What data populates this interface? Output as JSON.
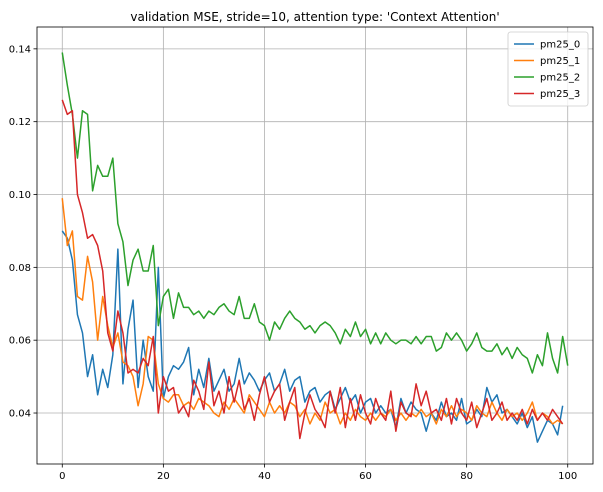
{
  "chart_data": {
    "type": "line",
    "title": "validation MSE, stride=10, attention type: 'Context Attention'",
    "xlabel": "",
    "ylabel": "",
    "xlim": [
      -5,
      105
    ],
    "ylim": [
      0.026,
      0.146
    ],
    "xticks": [
      0,
      20,
      40,
      60,
      80,
      100
    ],
    "yticks": [
      0.04,
      0.06,
      0.08,
      0.1,
      0.12,
      0.14
    ],
    "ytick_labels": [
      "0.04",
      "0.06",
      "0.08",
      "0.10",
      "0.12",
      "0.14"
    ],
    "grid": true,
    "legend_position": "top-right",
    "series": [
      {
        "name": "pm25_0",
        "color": "#1f77b4",
        "values": [
          0.09,
          0.088,
          0.082,
          0.067,
          0.062,
          0.05,
          0.056,
          0.045,
          0.052,
          0.047,
          0.056,
          0.085,
          0.048,
          0.063,
          0.071,
          0.047,
          0.06,
          0.05,
          0.046,
          0.08,
          0.044,
          0.05,
          0.053,
          0.052,
          0.054,
          0.058,
          0.045,
          0.052,
          0.047,
          0.055,
          0.046,
          0.049,
          0.052,
          0.046,
          0.048,
          0.055,
          0.048,
          0.051,
          0.049,
          0.046,
          0.049,
          0.051,
          0.046,
          0.048,
          0.052,
          0.046,
          0.049,
          0.05,
          0.043,
          0.046,
          0.047,
          0.043,
          0.045,
          0.046,
          0.041,
          0.044,
          0.047,
          0.043,
          0.045,
          0.04,
          0.043,
          0.044,
          0.04,
          0.042,
          0.04,
          0.041,
          0.036,
          0.044,
          0.04,
          0.043,
          0.041,
          0.04,
          0.035,
          0.04,
          0.038,
          0.043,
          0.039,
          0.04,
          0.038,
          0.044,
          0.037,
          0.038,
          0.041,
          0.039,
          0.047,
          0.043,
          0.045,
          0.04,
          0.041,
          0.039,
          0.037,
          0.04,
          0.036,
          0.039,
          0.032,
          0.035,
          0.038,
          0.037,
          0.034,
          0.042
        ]
      },
      {
        "name": "pm25_1",
        "color": "#ff7f0e",
        "values": [
          0.099,
          0.086,
          0.09,
          0.072,
          0.071,
          0.083,
          0.076,
          0.06,
          0.072,
          0.064,
          0.058,
          0.062,
          0.054,
          0.053,
          0.05,
          0.042,
          0.048,
          0.061,
          0.06,
          0.048,
          0.044,
          0.043,
          0.045,
          0.045,
          0.042,
          0.043,
          0.041,
          0.044,
          0.043,
          0.042,
          0.04,
          0.039,
          0.043,
          0.041,
          0.044,
          0.042,
          0.04,
          0.045,
          0.043,
          0.041,
          0.039,
          0.043,
          0.04,
          0.042,
          0.04,
          0.043,
          0.042,
          0.039,
          0.041,
          0.037,
          0.04,
          0.038,
          0.043,
          0.04,
          0.041,
          0.037,
          0.04,
          0.038,
          0.041,
          0.039,
          0.038,
          0.04,
          0.038,
          0.04,
          0.039,
          0.041,
          0.038,
          0.04,
          0.038,
          0.04,
          0.039,
          0.041,
          0.039,
          0.04,
          0.037,
          0.041,
          0.039,
          0.042,
          0.039,
          0.041,
          0.04,
          0.038,
          0.042,
          0.04,
          0.039,
          0.043,
          0.04,
          0.038,
          0.041,
          0.039,
          0.04,
          0.038,
          0.04,
          0.043,
          0.038,
          0.04,
          0.039,
          0.037,
          0.038,
          0.037
        ]
      },
      {
        "name": "pm25_2",
        "color": "#2ca02c",
        "values": [
          0.139,
          0.13,
          0.122,
          0.11,
          0.123,
          0.122,
          0.101,
          0.108,
          0.105,
          0.105,
          0.11,
          0.092,
          0.087,
          0.075,
          0.082,
          0.085,
          0.079,
          0.079,
          0.086,
          0.064,
          0.072,
          0.074,
          0.066,
          0.073,
          0.069,
          0.069,
          0.067,
          0.068,
          0.066,
          0.068,
          0.067,
          0.069,
          0.07,
          0.068,
          0.067,
          0.072,
          0.066,
          0.066,
          0.07,
          0.065,
          0.064,
          0.06,
          0.065,
          0.063,
          0.066,
          0.068,
          0.066,
          0.065,
          0.063,
          0.064,
          0.062,
          0.064,
          0.065,
          0.064,
          0.062,
          0.059,
          0.063,
          0.061,
          0.065,
          0.061,
          0.063,
          0.059,
          0.062,
          0.059,
          0.062,
          0.06,
          0.059,
          0.06,
          0.06,
          0.059,
          0.061,
          0.059,
          0.061,
          0.061,
          0.057,
          0.058,
          0.062,
          0.06,
          0.062,
          0.06,
          0.057,
          0.059,
          0.062,
          0.058,
          0.057,
          0.057,
          0.059,
          0.056,
          0.058,
          0.055,
          0.058,
          0.056,
          0.055,
          0.051,
          0.056,
          0.053,
          0.062,
          0.055,
          0.051,
          0.061,
          0.053
        ]
      },
      {
        "name": "pm25_3",
        "color": "#d62728",
        "values": [
          0.126,
          0.122,
          0.123,
          0.1,
          0.095,
          0.088,
          0.089,
          0.086,
          0.079,
          0.062,
          0.057,
          0.068,
          0.062,
          0.051,
          0.052,
          0.051,
          0.055,
          0.053,
          0.061,
          0.04,
          0.05,
          0.046,
          0.047,
          0.04,
          0.042,
          0.039,
          0.049,
          0.046,
          0.041,
          0.054,
          0.042,
          0.046,
          0.04,
          0.05,
          0.043,
          0.049,
          0.041,
          0.044,
          0.038,
          0.045,
          0.05,
          0.043,
          0.046,
          0.048,
          0.038,
          0.043,
          0.047,
          0.033,
          0.04,
          0.045,
          0.041,
          0.039,
          0.036,
          0.046,
          0.04,
          0.047,
          0.036,
          0.044,
          0.038,
          0.045,
          0.04,
          0.037,
          0.044,
          0.04,
          0.038,
          0.046,
          0.035,
          0.043,
          0.04,
          0.039,
          0.048,
          0.042,
          0.046,
          0.04,
          0.041,
          0.038,
          0.044,
          0.037,
          0.044,
          0.04,
          0.038,
          0.043,
          0.036,
          0.04,
          0.044,
          0.038,
          0.04,
          0.043,
          0.038,
          0.04,
          0.038,
          0.041,
          0.037,
          0.041,
          0.038,
          0.04,
          0.038,
          0.041,
          0.039,
          0.037
        ]
      }
    ]
  }
}
